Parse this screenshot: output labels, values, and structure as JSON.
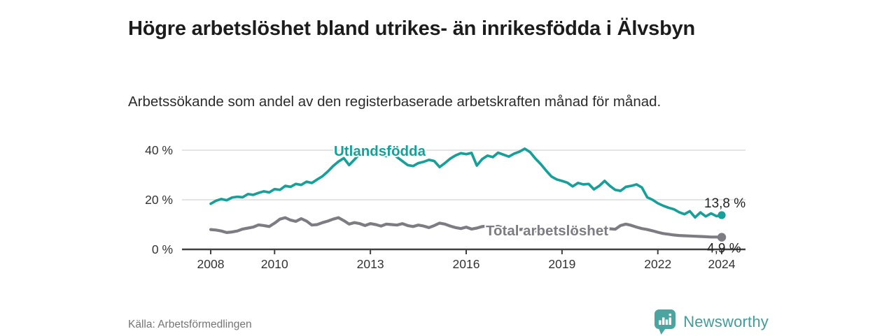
{
  "header": {
    "title": "Högre arbetslöshet bland utrikes- än inrikesfödda i Älvsbyn",
    "subtitle": "Arbetssökande som andel av den registerbaserade arbetskraften månad för månad."
  },
  "footer": {
    "source_label": "Källa: Arbetsförmedlingen",
    "brand_name": "Newsworthy",
    "brand_icon": "bar-chart-speech-bubble-icon"
  },
  "colors": {
    "accent_teal": "#17a099",
    "series_gray": "#7d7c82",
    "grid": "#dcdcdc",
    "axis": "#404040",
    "axis_text": "#333333",
    "value_label_text": "#222222",
    "text_muted": "#757575",
    "brand_teal": "#3f9d9a",
    "brand_bubble": "#4aa5a1"
  },
  "chart_data": {
    "type": "line",
    "title": "",
    "xlabel": "",
    "ylabel": "",
    "x_unit": "year (monthly data)",
    "y_unit": "% of registered labour force",
    "x_start": 2008.0,
    "x_step_years": 0.16667,
    "x_ticks": [
      2008,
      2010,
      2013,
      2016,
      2019,
      2022,
      2024
    ],
    "y_ticks": [
      0,
      20,
      40
    ],
    "y_tick_suffix": " %",
    "ylim": [
      0,
      42
    ],
    "xlim": [
      2008,
      2024.8
    ],
    "grid": "horizontal",
    "legend_position": "inline-line-labels",
    "series": [
      {
        "name": "Utlandsfödda",
        "color": "#17a099",
        "end_label": "13,8 %",
        "end_value": 13.8,
        "values": [
          18.4,
          19.6,
          20.3,
          19.8,
          20.9,
          21.2,
          21.0,
          22.3,
          22.0,
          22.8,
          23.4,
          23.0,
          24.3,
          24.0,
          25.6,
          25.2,
          26.4,
          26.0,
          27.3,
          26.8,
          28.2,
          29.5,
          31.4,
          33.6,
          35.4,
          36.8,
          34.0,
          36.2,
          38.6,
          39.4,
          38.8,
          39.6,
          38.4,
          37.6,
          38.9,
          37.2,
          35.6,
          34.0,
          33.6,
          34.8,
          35.3,
          36.1,
          35.6,
          33.2,
          34.8,
          36.6,
          37.9,
          38.8,
          38.4,
          38.9,
          33.8,
          36.4,
          37.8,
          37.2,
          39.0,
          38.2,
          37.4,
          38.6,
          39.4,
          40.6,
          39.2,
          36.6,
          34.4,
          31.8,
          29.4,
          28.2,
          27.6,
          26.9,
          25.4,
          26.8,
          26.2,
          26.4,
          24.2,
          25.6,
          27.6,
          25.6,
          24.0,
          23.6,
          25.2,
          25.6,
          26.2,
          25.0,
          21.0,
          20.0,
          18.6,
          17.6,
          16.8,
          16.2,
          15.0,
          14.2,
          15.4,
          12.9,
          14.9,
          13.3,
          14.5,
          13.4,
          13.8
        ]
      },
      {
        "name": "Total arbetslöshet",
        "color": "#7d7c82",
        "end_label": "4,9 %",
        "end_value": 4.9,
        "values": [
          8.0,
          7.8,
          7.4,
          6.8,
          7.0,
          7.4,
          8.2,
          8.6,
          9.0,
          9.9,
          9.6,
          9.2,
          10.6,
          12.2,
          12.8,
          11.8,
          11.3,
          12.4,
          11.4,
          9.8,
          10.0,
          10.8,
          11.4,
          12.2,
          12.8,
          11.6,
          10.2,
          10.8,
          10.4,
          9.6,
          10.4,
          10.0,
          9.4,
          10.2,
          10.0,
          9.8,
          10.4,
          9.6,
          9.2,
          9.8,
          9.4,
          8.8,
          9.6,
          10.6,
          10.2,
          9.4,
          8.8,
          8.4,
          9.0,
          8.2,
          8.6,
          9.2,
          9.4,
          9.0,
          9.3,
          8.6,
          8.0,
          7.6,
          8.0,
          8.2,
          8.0,
          7.4,
          7.2,
          7.8,
          7.5,
          7.2,
          7.6,
          7.0,
          6.8,
          7.3,
          7.1,
          6.9,
          7.3,
          7.8,
          8.5,
          8.3,
          8.1,
          9.6,
          10.2,
          9.7,
          9.0,
          8.4,
          8.0,
          7.5,
          6.9,
          6.4,
          6.1,
          5.8,
          5.6,
          5.5,
          5.4,
          5.3,
          5.2,
          5.1,
          5.0,
          5.0,
          4.9
        ]
      }
    ]
  }
}
